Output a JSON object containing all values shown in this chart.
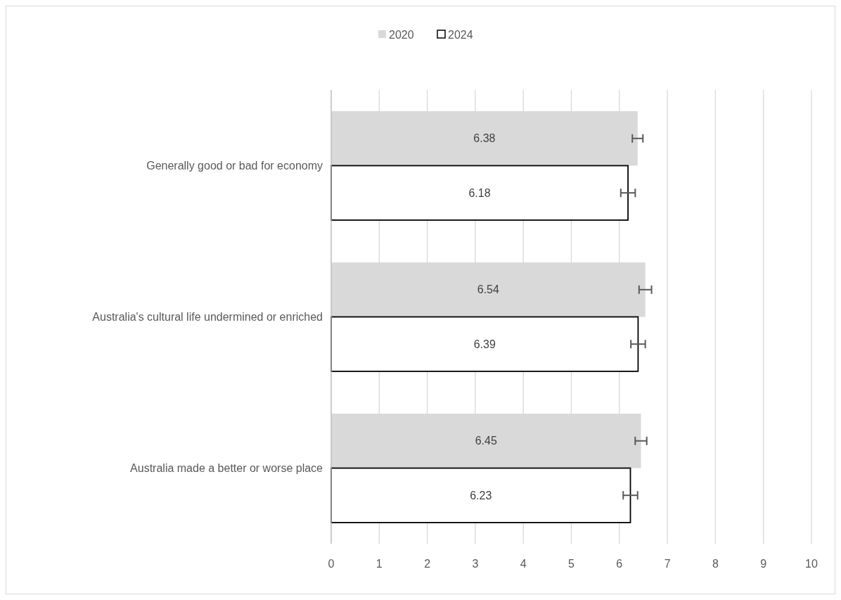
{
  "chart_data": {
    "type": "bar",
    "orientation": "horizontal",
    "categories": [
      "Generally good or bad for economy",
      "Australia's cultural life undermined or enriched",
      "Australia made a better or worse place"
    ],
    "series": [
      {
        "name": "2020",
        "color": "#d9d9d9",
        "values": [
          6.38,
          6.54,
          6.45
        ],
        "errors": [
          0.11,
          0.13,
          0.12
        ]
      },
      {
        "name": "2024",
        "color": "#ffffff",
        "values": [
          6.18,
          6.39,
          6.23
        ],
        "errors": [
          0.15,
          0.15,
          0.15
        ]
      }
    ],
    "xlim": [
      0,
      10
    ],
    "xticks": [
      0,
      1,
      2,
      3,
      4,
      5,
      6,
      7,
      8,
      9,
      10
    ],
    "grid": "x",
    "legend": "top",
    "data_labels": true
  }
}
